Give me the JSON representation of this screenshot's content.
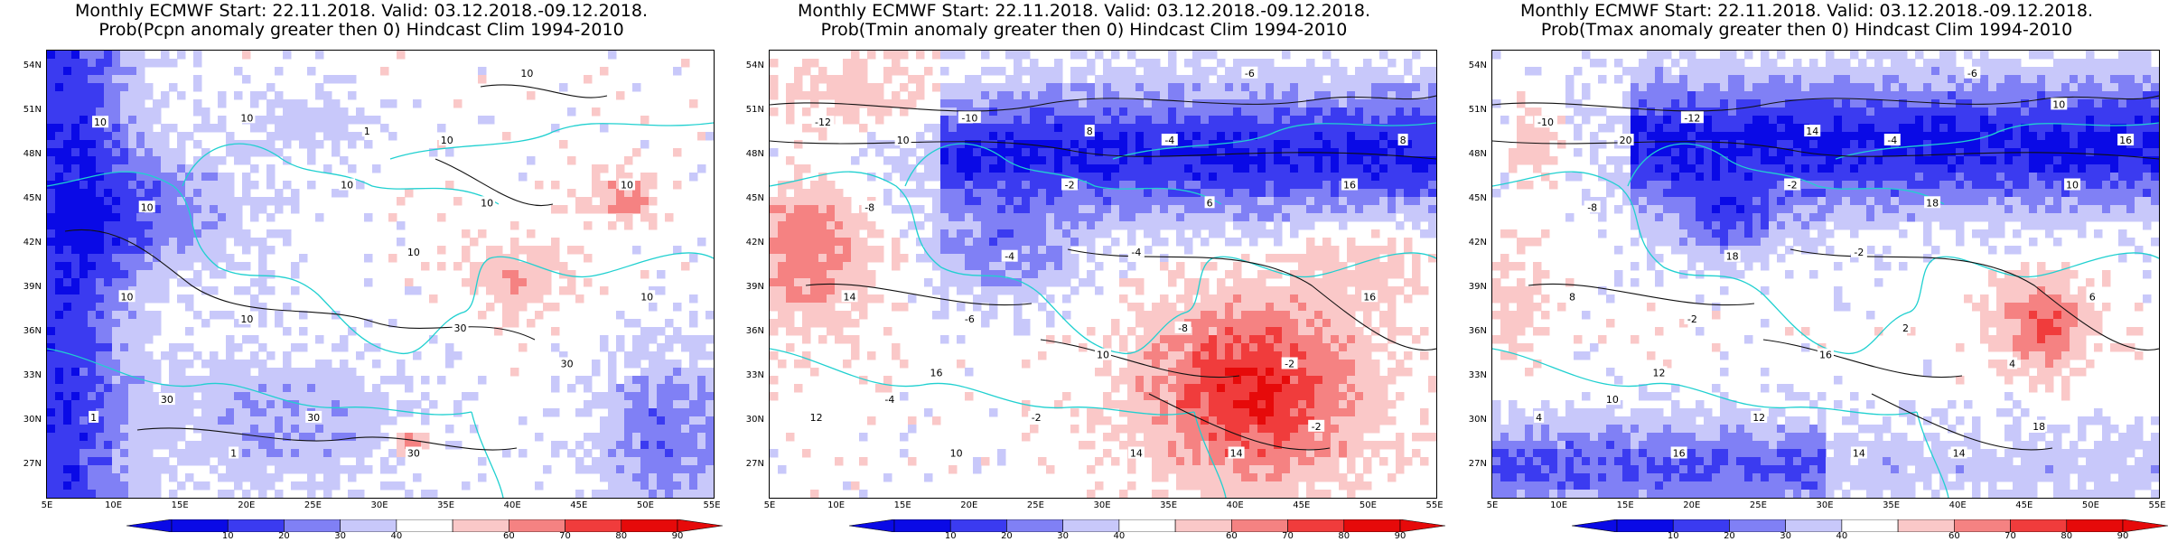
{
  "panels": [
    {
      "title_line1": "Monthly ECMWF Start: 22.11.2018. Valid: 03.12.2018.-09.12.2018.",
      "title_line2": "Prob(Pcpn anomaly greater then 0) Hindcast Clim 1994-2010",
      "contour_labels": [
        "10",
        "10",
        "10",
        "10",
        "10",
        "10",
        "10",
        "10",
        "30",
        "30",
        "30",
        "30",
        "30",
        "10",
        "10",
        "10",
        "1",
        "1",
        "1",
        "10"
      ]
    },
    {
      "title_line1": "Monthly ECMWF Start: 22.11.2018. Valid: 03.12.2018.-09.12.2018.",
      "title_line2": "Prob(Tmin anomaly greater then 0) Hindcast Clim 1994-2010",
      "contour_labels": [
        "-12",
        "-10",
        "-8",
        "-6",
        "-4",
        "-2",
        "-4",
        "-6",
        "-8",
        "-2",
        "-4",
        "-2",
        "14",
        "16",
        "14",
        "16",
        "12",
        "10",
        "8",
        "6",
        "-4",
        "-2",
        "10",
        "8",
        "10",
        "14",
        "16"
      ]
    },
    {
      "title_line1": "Monthly ECMWF Start: 22.11.2018. Valid: 03.12.2018.-09.12.2018.",
      "title_line2": "Prob(Tmax anomaly greater then 0) Hindcast Clim 1994-2010",
      "contour_labels": [
        "-10",
        "-12",
        "-8",
        "-6",
        "-4",
        "-2",
        "-2",
        "-2",
        "2",
        "4",
        "10",
        "12",
        "14",
        "10",
        "8",
        "6",
        "4",
        "16",
        "14",
        "18",
        "18",
        "18",
        "20",
        "16",
        "16",
        "14",
        "12",
        "10"
      ]
    }
  ],
  "lat_ticks": [
    "54N",
    "51N",
    "48N",
    "45N",
    "42N",
    "39N",
    "36N",
    "33N",
    "30N",
    "27N"
  ],
  "lon_ticks": [
    "5E",
    "10E",
    "15E",
    "20E",
    "25E",
    "30E",
    "35E",
    "40E",
    "45E",
    "50E",
    "55E"
  ],
  "colorbar": {
    "ticks": [
      "10",
      "20",
      "30",
      "40",
      "60",
      "70",
      "80",
      "90"
    ],
    "colors": [
      "#0a0ae6",
      "#3b3bf0",
      "#8080f5",
      "#c8c8fa",
      "#ffffff",
      "#fac8c8",
      "#f58282",
      "#f03c3c",
      "#e60a0a"
    ]
  }
}
